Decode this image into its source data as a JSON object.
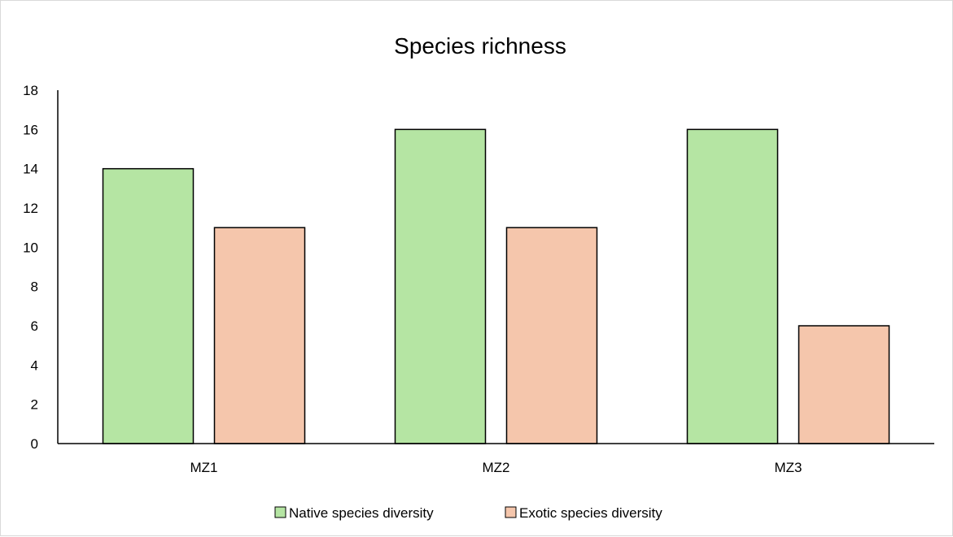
{
  "chart_data": {
    "type": "bar",
    "title": "Species richness",
    "xlabel": "",
    "ylabel": "",
    "categories": [
      "MZ1",
      "MZ2",
      "MZ3"
    ],
    "series": [
      {
        "name": "Native species diversity",
        "values": [
          14,
          16,
          16
        ],
        "color": "#b5e5a3"
      },
      {
        "name": "Exotic species diversity",
        "values": [
          11,
          11,
          6
        ],
        "color": "#f5c6ac"
      }
    ],
    "ylim": [
      0,
      18
    ],
    "yticks": [
      "0",
      "2",
      "4",
      "6",
      "8",
      "10",
      "12",
      "14",
      "16",
      "18"
    ],
    "grid": false,
    "legend_position": "bottom",
    "bar_outline_color": "#000000"
  }
}
